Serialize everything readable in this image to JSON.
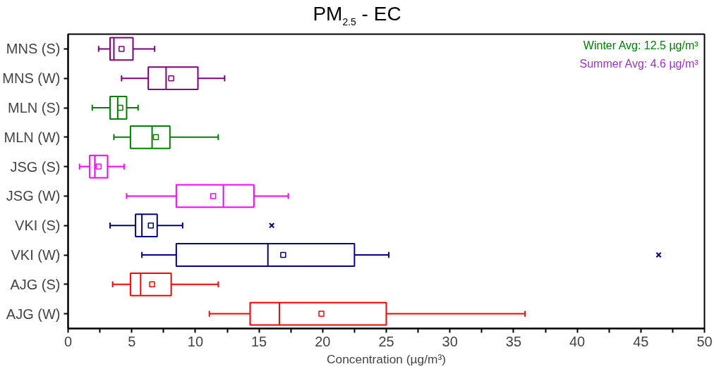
{
  "chart_data": {
    "type": "box",
    "orientation": "horizontal",
    "title": "PM$_{2.5}$ - EC",
    "xlabel": "Concentration (µg/m³)",
    "categories": [
      "MNS (S)",
      "MNS (W)",
      "MLN (S)",
      "MLN (W)",
      "JSG (S)",
      "JSG (W)",
      "VKI (S)",
      "VKI (W)",
      "AJG (S)",
      "AJG (W)"
    ],
    "colors": [
      "#800080",
      "#800080",
      "#008000",
      "#008000",
      "#ff00ff",
      "#ff00ff",
      "#000080",
      "#000080",
      "#ff0000",
      "#ff0000"
    ],
    "boxes": [
      {
        "low": 2.4,
        "q1": 3.3,
        "median": 3.6,
        "q3": 5.1,
        "high": 6.8,
        "mean": 4.2
      },
      {
        "low": 4.2,
        "q1": 6.3,
        "median": 7.7,
        "q3": 10.2,
        "high": 12.3,
        "mean": 8.1
      },
      {
        "low": 1.9,
        "q1": 3.3,
        "median": 3.9,
        "q3": 4.6,
        "high": 5.5,
        "mean": 4.1
      },
      {
        "low": 3.6,
        "q1": 4.9,
        "median": 6.6,
        "q3": 8.0,
        "high": 11.8,
        "mean": 6.9
      },
      {
        "low": 0.9,
        "q1": 1.7,
        "median": 2.1,
        "q3": 3.1,
        "high": 4.4,
        "mean": 2.4
      },
      {
        "low": 4.6,
        "q1": 8.5,
        "median": 12.2,
        "q3": 14.6,
        "high": 17.3,
        "mean": 11.4
      },
      {
        "low": 3.3,
        "q1": 5.3,
        "median": 5.8,
        "q3": 7.0,
        "high": 9.0,
        "mean": 6.5,
        "outliers": [
          16.0
        ]
      },
      {
        "low": 5.8,
        "q1": 8.5,
        "median": 15.7,
        "q3": 22.5,
        "high": 25.2,
        "mean": 16.9,
        "outliers": [
          46.4
        ]
      },
      {
        "low": 3.5,
        "q1": 4.9,
        "median": 5.7,
        "q3": 8.1,
        "high": 11.8,
        "mean": 6.6
      },
      {
        "low": 11.1,
        "q1": 14.3,
        "median": 16.6,
        "q3": 25.0,
        "high": 35.9,
        "mean": 19.9
      }
    ],
    "xlim": [
      0,
      50
    ],
    "xticks": [
      0,
      {
        "value": 2.5,
        "label": null
      },
      5,
      {
        "value": 7.5,
        "label": null
      },
      10,
      {
        "value": 12.5,
        "label": null
      },
      15,
      {
        "value": 17.5,
        "label": null
      },
      20,
      {
        "value": 22.5,
        "label": null
      },
      25,
      {
        "value": 27.5,
        "label": null
      },
      30,
      {
        "value": 32.5,
        "label": null
      },
      35,
      {
        "value": 37.5,
        "label": null
      },
      40,
      {
        "value": 42.5,
        "label": null
      },
      45,
      {
        "value": 47.5,
        "label": null
      },
      50
    ],
    "annotations": [
      "Winter Avg: 12.5 µg/m³",
      "Summer Avg: 4.6 µg/m³"
    ],
    "grid": false
  }
}
